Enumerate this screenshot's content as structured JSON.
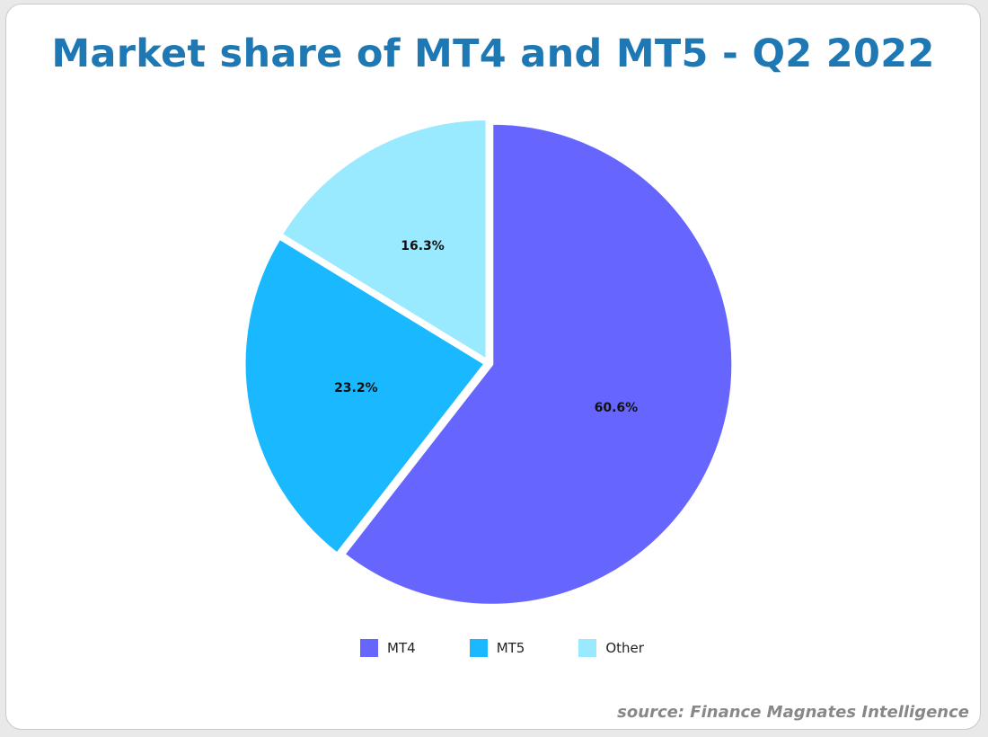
{
  "chart_data": {
    "type": "pie",
    "title": "Market share of MT4 and MT5 - Q2 2022",
    "categories": [
      "MT4",
      "MT5",
      "Other"
    ],
    "values": [
      60.6,
      23.2,
      16.3
    ],
    "labels": [
      "60.6%",
      "23.2%",
      "16.3%"
    ],
    "colors": [
      "#6666ff",
      "#1ab8ff",
      "#99e9ff"
    ],
    "legend_position": "bottom",
    "start_angle_deg": 0,
    "direction": "clockwise"
  },
  "source": "source: Finance Magnates Intelligence"
}
